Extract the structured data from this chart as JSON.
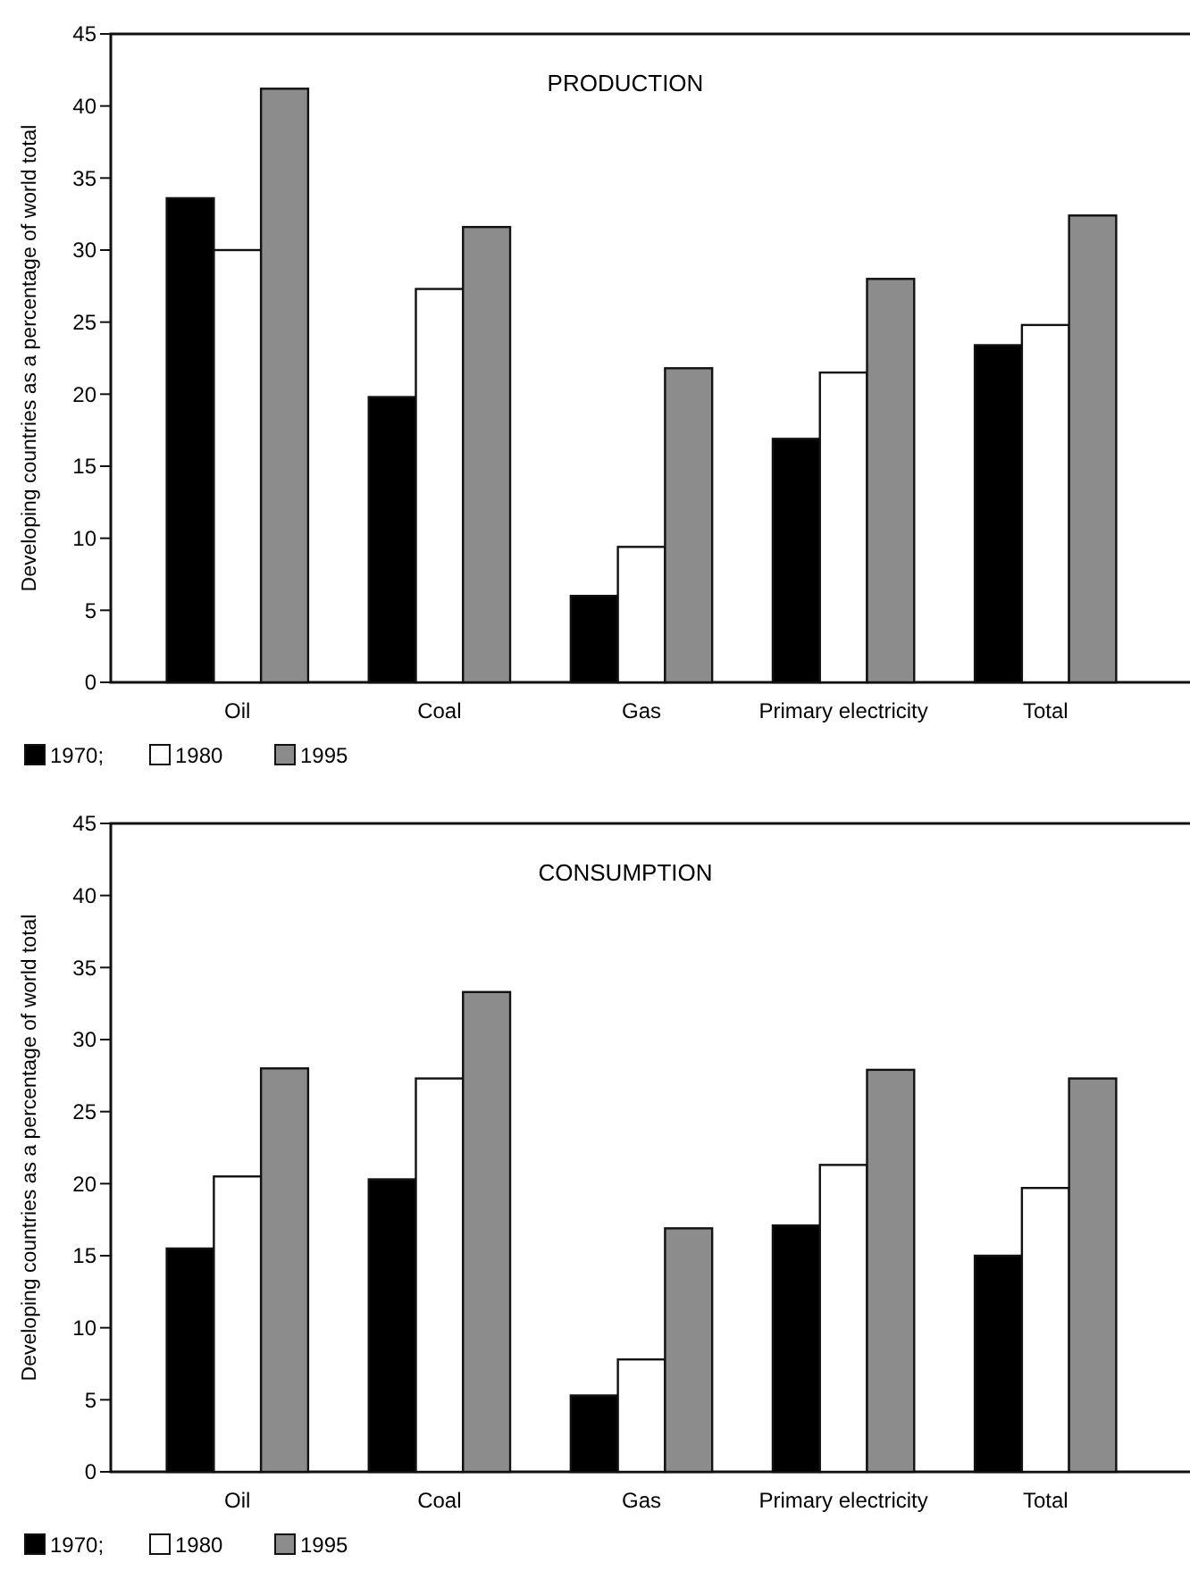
{
  "chart_data": [
    {
      "type": "bar",
      "title": "PRODUCTION",
      "ylabel": "Developing countries as a percentage of world total",
      "categories": [
        "Oil",
        "Coal",
        "Gas",
        "Primary electricity",
        "Total"
      ],
      "series": [
        {
          "name": "1970;",
          "color": "#000000",
          "values": [
            33.6,
            19.8,
            6,
            16.9,
            23.4
          ]
        },
        {
          "name": "1980",
          "color": "#ffffff",
          "values": [
            30,
            27.3,
            9.4,
            21.5,
            24.8
          ]
        },
        {
          "name": "1995",
          "color": "#8c8c8c",
          "values": [
            41.2,
            31.6,
            21.8,
            28,
            32.4
          ]
        }
      ],
      "ylim": [
        0,
        45
      ],
      "yticks": [
        0,
        5,
        10,
        15,
        20,
        25,
        30,
        35,
        40,
        45
      ],
      "grid": false,
      "legend": "bottom left"
    },
    {
      "type": "bar",
      "title": "CONSUMPTION",
      "ylabel": "Developing countries as a percentage of world total",
      "categories": [
        "Oil",
        "Coal",
        "Gas",
        "Primary electricity",
        "Total"
      ],
      "series": [
        {
          "name": "1970;",
          "color": "#000000",
          "values": [
            15.5,
            20.3,
            5.3,
            17.1,
            15
          ]
        },
        {
          "name": "1980",
          "color": "#ffffff",
          "values": [
            20.5,
            27.3,
            7.8,
            21.3,
            19.7
          ]
        },
        {
          "name": "1995",
          "color": "#8c8c8c",
          "values": [
            28,
            33.3,
            16.9,
            27.9,
            27.3
          ]
        }
      ],
      "ylim": [
        0,
        45
      ],
      "yticks": [
        0,
        5,
        10,
        15,
        20,
        25,
        30,
        35,
        40,
        45
      ],
      "grid": false,
      "legend": "bottom left"
    }
  ]
}
